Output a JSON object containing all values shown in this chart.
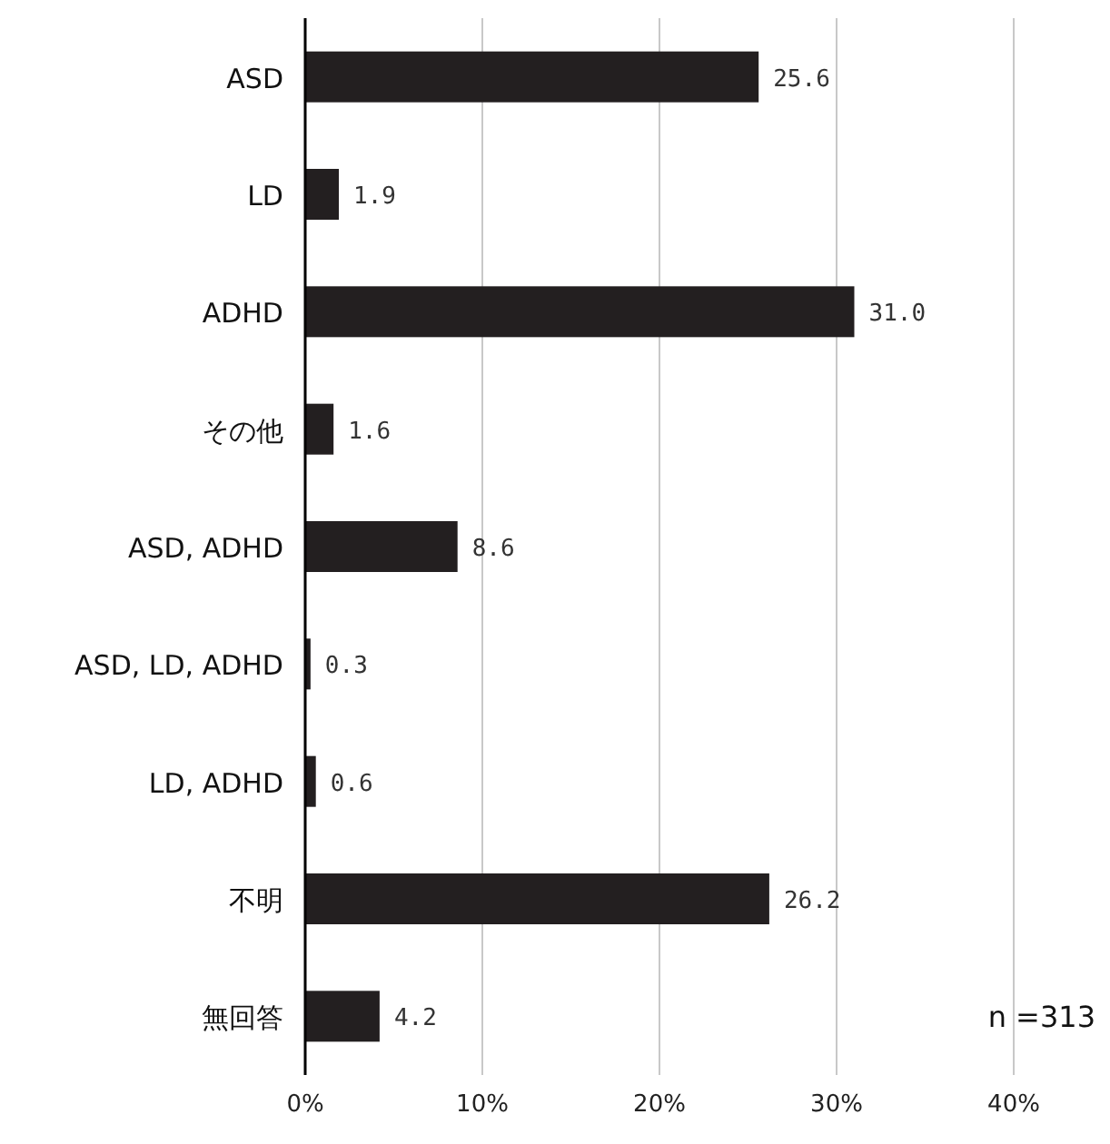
{
  "chart_data": {
    "type": "bar",
    "orientation": "horizontal",
    "categories": [
      "ASD",
      "LD",
      "ADHD",
      "その他",
      "ASD, ADHD",
      "ASD, LD, ADHD",
      "LD, ADHD",
      "不明",
      "無回答"
    ],
    "values": [
      25.6,
      1.9,
      31.0,
      1.6,
      8.6,
      0.3,
      0.6,
      26.2,
      4.2
    ],
    "value_labels": [
      "25.6",
      "1.9",
      "31.0",
      "1.6",
      "8.6",
      "0.3",
      "0.6",
      "26.2",
      "4.2"
    ],
    "color": "#231f20",
    "xlim": [
      0,
      40
    ],
    "xticks": [
      {
        "value": 0,
        "label": "0%"
      },
      {
        "value": 10,
        "label": "10%"
      },
      {
        "value": 20,
        "label": "20%"
      },
      {
        "value": 30,
        "label": "30%"
      },
      {
        "value": 40,
        "label": "40%"
      }
    ],
    "grid": "x",
    "annotations": [
      "n =313"
    ]
  }
}
